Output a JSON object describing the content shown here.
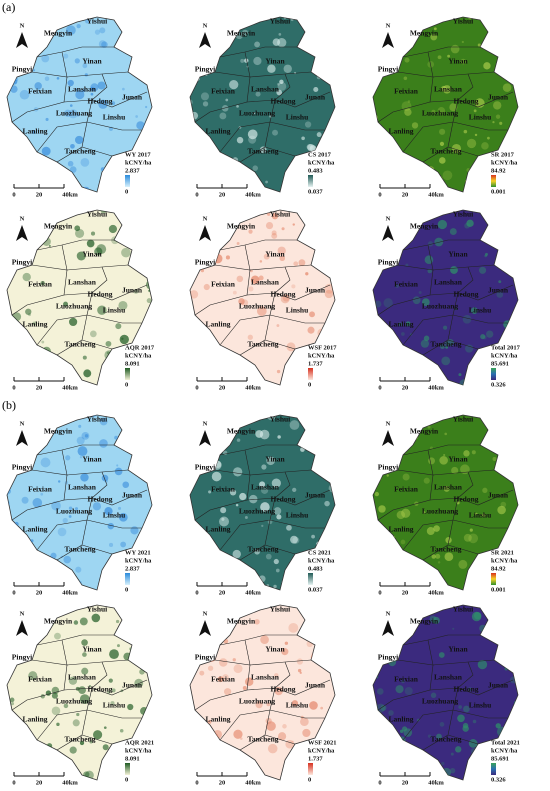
{
  "north": "N",
  "scale_labels": [
    "0",
    "20",
    "40km"
  ],
  "county_labels": [
    "Yishui",
    "Mengyin",
    "Pingyi",
    "Yinan",
    "Feixian",
    "Lanshan",
    "Hedong",
    "Junan",
    "Luozhuang",
    "Linshu",
    "Lanling",
    "Tancheng"
  ],
  "sections": [
    {
      "label": "(a)",
      "maps": [
        {
          "legend_title": "WY 2017",
          "unit": "kCNY/ha",
          "max": "2.837",
          "min": "0",
          "colors": {
            "fill": "#9ed6f2",
            "patch": "#3d8fdc",
            "bar": [
              "#2a8bdc",
              "#d8f1fc"
            ]
          }
        },
        {
          "legend_title": "CS 2017",
          "unit": "kCNY/ha",
          "max": "0.483",
          "min": "0.037",
          "colors": {
            "fill": "#2f6d68",
            "patch": "#d7ebe9",
            "bar": [
              "#1f5a55",
              "#e6f3f2"
            ]
          }
        },
        {
          "legend_title": "SR 2017",
          "unit": "kCNY/ha",
          "max": "84.92",
          "min": "0.001",
          "colors": {
            "fill": "#3b7f1b",
            "patch": "#a6c94a",
            "bar": [
              "#d7301f",
              "#f5d327",
              "#2f8f2f"
            ]
          }
        },
        {
          "legend_title": "AQR 2017",
          "unit": "kCNY/ha",
          "max": "8.091",
          "min": "0",
          "colors": {
            "fill": "#f4f2d8",
            "patch": "#1e5a22",
            "bar": [
              "#1e5a22",
              "#f4f2d8"
            ]
          }
        },
        {
          "legend_title": "WSF 2017",
          "unit": "kCNY/ha",
          "max": "1.737",
          "min": "0",
          "colors": {
            "fill": "#fce6dc",
            "patch": "#e58a6e",
            "bar": [
              "#d7301f",
              "#fde8de"
            ]
          }
        },
        {
          "legend_title": "Total 2017",
          "unit": "kCNY/ha",
          "max": "85.691",
          "min": "0.326",
          "colors": {
            "fill": "#3b2a7e",
            "patch": "#2f8f6a",
            "bar": [
              "#3ba35a",
              "#2a6fb0",
              "#3b2a7e"
            ]
          }
        }
      ]
    },
    {
      "label": "(b)",
      "maps": [
        {
          "legend_title": "WY 2021",
          "unit": "kCNY/ha",
          "max": "2.837",
          "min": "0",
          "colors": {
            "fill": "#9ed6f2",
            "patch": "#3d8fdc",
            "bar": [
              "#2a8bdc",
              "#d8f1fc"
            ]
          }
        },
        {
          "legend_title": "CS 2021",
          "unit": "kCNY/ha",
          "max": "0.483",
          "min": "0.037",
          "colors": {
            "fill": "#2f6d68",
            "patch": "#d7ebe9",
            "bar": [
              "#1f5a55",
              "#e6f3f2"
            ]
          }
        },
        {
          "legend_title": "SR 2021",
          "unit": "kCNY/ha",
          "max": "84.92",
          "min": "0.001",
          "colors": {
            "fill": "#3b7f1b",
            "patch": "#a6c94a",
            "bar": [
              "#d7301f",
              "#f5d327",
              "#2f8f2f"
            ]
          }
        },
        {
          "legend_title": "AQR 2021",
          "unit": "kCNY/ha",
          "max": "8.091",
          "min": "0",
          "colors": {
            "fill": "#f4f2d8",
            "patch": "#1e5a22",
            "bar": [
              "#1e5a22",
              "#f4f2d8"
            ]
          }
        },
        {
          "legend_title": "WSF 2021",
          "unit": "kCNY/ha",
          "max": "1.737",
          "min": "0",
          "colors": {
            "fill": "#fce6dc",
            "patch": "#e58a6e",
            "bar": [
              "#d7301f",
              "#fde8de"
            ]
          }
        },
        {
          "legend_title": "Total 2021",
          "unit": "kCNY/ha",
          "max": "85.691",
          "min": "0.326",
          "colors": {
            "fill": "#3b2a7e",
            "patch": "#2f8f6a",
            "bar": [
              "#3ba35a",
              "#2a6fb0",
              "#3b2a7e"
            ]
          }
        }
      ]
    }
  ]
}
